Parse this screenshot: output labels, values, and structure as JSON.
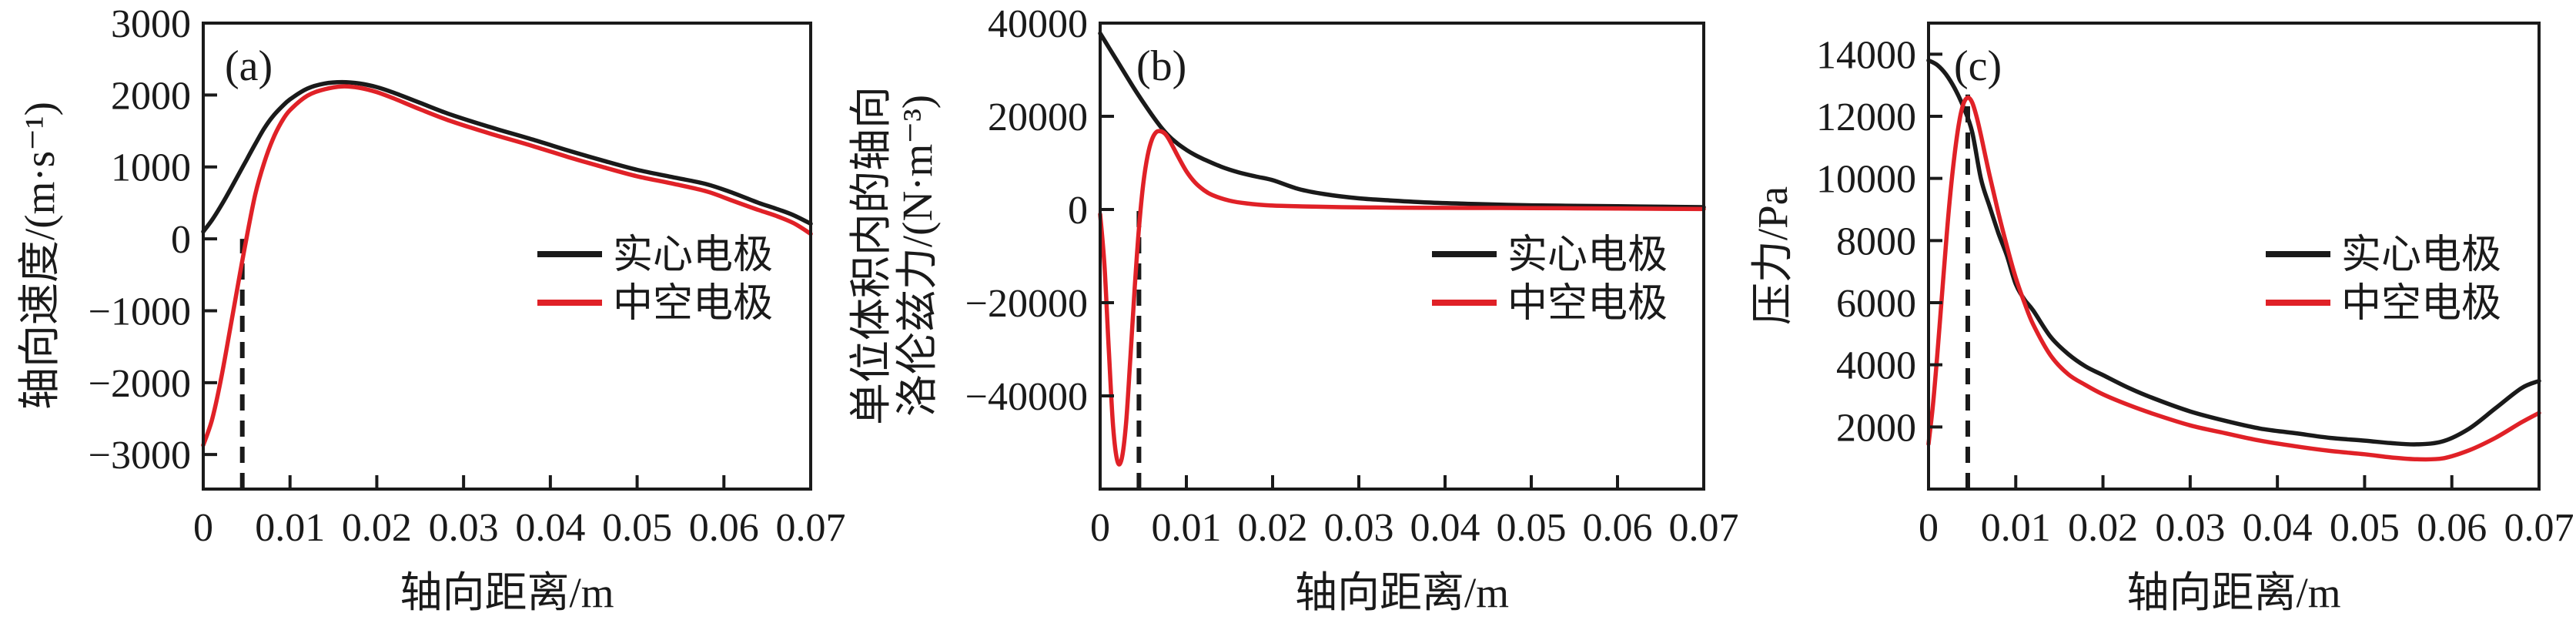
{
  "figure": {
    "background": "#ffffff",
    "axis_color": "#1a1a1a",
    "panels": [
      "a",
      "b",
      "c"
    ],
    "series_colors": {
      "solid_electrode": "#1a1a1a",
      "hollow_electrode": "#e02127"
    }
  },
  "chart_data": [
    {
      "type": "line",
      "panel_label": "(a)",
      "xlabel": "轴向距离/m",
      "ylabel_lines": [
        "轴向速度/(m·s⁻¹)"
      ],
      "xlim": [
        0,
        0.07
      ],
      "ylim": [
        -3480,
        3000
      ],
      "grid": false,
      "legend_position": "center-right",
      "xtick_values": [
        0,
        0.01,
        0.02,
        0.03,
        0.04,
        0.05,
        0.06,
        0.07
      ],
      "xtick_labels": [
        "0",
        "0.01",
        "0.02",
        "0.03",
        "0.04",
        "0.05",
        "0.06",
        "0.07"
      ],
      "ytick_values": [
        3000,
        2000,
        1000,
        0,
        -1000,
        -2000,
        -3000
      ],
      "ytick_labels": [
        "3000",
        "2000",
        "1000",
        "0",
        "−1000",
        "−2000",
        "−3000"
      ],
      "dashed_guide": {
        "x": 0.0045,
        "y_from": -3480,
        "y_to": 0
      },
      "series": [
        {
          "name": "实心电极",
          "color": "#1a1a1a",
          "x": [
            0,
            0.001,
            0.002,
            0.003,
            0.004,
            0.005,
            0.006,
            0.007,
            0.008,
            0.009,
            0.01,
            0.012,
            0.014,
            0.016,
            0.018,
            0.02,
            0.022,
            0.025,
            0.028,
            0.031,
            0.034,
            0.038,
            0.042,
            0.046,
            0.05,
            0.054,
            0.058,
            0.061,
            0.064,
            0.066,
            0.068,
            0.07
          ],
          "y": [
            100,
            260,
            450,
            660,
            880,
            1100,
            1320,
            1530,
            1700,
            1830,
            1940,
            2090,
            2160,
            2180,
            2160,
            2110,
            2030,
            1890,
            1750,
            1630,
            1520,
            1380,
            1230,
            1090,
            960,
            860,
            760,
            640,
            500,
            420,
            330,
            210
          ]
        },
        {
          "name": "中空电极",
          "color": "#e02127",
          "x": [
            0,
            0.001,
            0.002,
            0.003,
            0.004,
            0.005,
            0.006,
            0.007,
            0.008,
            0.009,
            0.01,
            0.012,
            0.014,
            0.016,
            0.018,
            0.02,
            0.022,
            0.025,
            0.028,
            0.031,
            0.034,
            0.038,
            0.042,
            0.046,
            0.05,
            0.054,
            0.058,
            0.061,
            0.064,
            0.066,
            0.068,
            0.07
          ],
          "y": [
            -2870,
            -2520,
            -1980,
            -1320,
            -640,
            20,
            620,
            1050,
            1380,
            1620,
            1790,
            1990,
            2080,
            2120,
            2100,
            2040,
            1950,
            1800,
            1660,
            1540,
            1430,
            1290,
            1140,
            1000,
            870,
            770,
            660,
            530,
            400,
            320,
            220,
            70
          ]
        }
      ]
    },
    {
      "type": "line",
      "panel_label": "(b)",
      "xlabel": "轴向距离/m",
      "ylabel_lines": [
        "单位体积内的轴向",
        "洛伦兹力/(N·m⁻³)"
      ],
      "xlim": [
        0,
        0.07
      ],
      "ylim": [
        -60000,
        40000
      ],
      "grid": false,
      "legend_position": "center-right",
      "xtick_values": [
        0,
        0.01,
        0.02,
        0.03,
        0.04,
        0.05,
        0.06,
        0.07
      ],
      "xtick_labels": [
        "0",
        "0.01",
        "0.02",
        "0.03",
        "0.04",
        "0.05",
        "0.06",
        "0.07"
      ],
      "ytick_values": [
        40000,
        20000,
        0,
        -20000,
        -40000
      ],
      "ytick_labels": [
        "40000",
        "20000",
        "0",
        "−20000",
        "−40000"
      ],
      "dashed_guide": {
        "x": 0.0045,
        "y_from": -60000,
        "y_to": 0
      },
      "series": [
        {
          "name": "实心电极",
          "color": "#1a1a1a",
          "x": [
            0,
            0.001,
            0.002,
            0.003,
            0.004,
            0.005,
            0.006,
            0.007,
            0.008,
            0.009,
            0.01,
            0.011,
            0.012,
            0.014,
            0.016,
            0.018,
            0.02,
            0.023,
            0.026,
            0.03,
            0.034,
            0.038,
            0.042,
            0.046,
            0.05,
            0.055,
            0.06,
            0.065,
            0.07
          ],
          "y": [
            37800,
            34800,
            31800,
            28800,
            25800,
            23000,
            20300,
            17800,
            15700,
            14100,
            12800,
            11700,
            10800,
            9200,
            8000,
            7100,
            6300,
            4400,
            3300,
            2400,
            1900,
            1500,
            1250,
            1050,
            900,
            800,
            700,
            600,
            500
          ]
        },
        {
          "name": "中空电极",
          "color": "#e02127",
          "x": [
            0,
            0.0005,
            0.001,
            0.0015,
            0.002,
            0.0025,
            0.003,
            0.0035,
            0.004,
            0.0045,
            0.005,
            0.0055,
            0.006,
            0.0065,
            0.007,
            0.0075,
            0.008,
            0.009,
            0.01,
            0.011,
            0.012,
            0.013,
            0.015,
            0.017,
            0.02,
            0.024,
            0.028,
            0.034,
            0.04,
            0.05,
            0.06,
            0.07
          ],
          "y": [
            -1000,
            -12000,
            -30000,
            -46500,
            -54000,
            -53500,
            -46000,
            -32000,
            -17000,
            -4000,
            5500,
            11500,
            15000,
            16600,
            16800,
            16300,
            15000,
            11500,
            8200,
            5800,
            4200,
            3100,
            1900,
            1300,
            850,
            650,
            500,
            400,
            350,
            300,
            200,
            100
          ]
        }
      ]
    },
    {
      "type": "line",
      "panel_label": "(c)",
      "xlabel": "轴向距离/m",
      "ylabel_lines": [
        "压力/Pa"
      ],
      "xlim": [
        0,
        0.07
      ],
      "ylim": [
        0,
        15000
      ],
      "grid": false,
      "legend_position": "center-right",
      "xtick_values": [
        0,
        0.01,
        0.02,
        0.03,
        0.04,
        0.05,
        0.06,
        0.07
      ],
      "xtick_labels": [
        "0",
        "0.01",
        "0.02",
        "0.03",
        "0.04",
        "0.05",
        "0.06",
        "0.07"
      ],
      "ytick_values": [
        14000,
        12000,
        10000,
        8000,
        6000,
        4000,
        2000
      ],
      "ytick_labels": [
        "14000",
        "12000",
        "10000",
        "8000",
        "6000",
        "4000",
        "2000"
      ],
      "dashed_guide": {
        "x": 0.0045,
        "y_from": 0,
        "y_to": 12700
      },
      "series": [
        {
          "name": "实心电极",
          "color": "#1a1a1a",
          "x": [
            0,
            0.001,
            0.002,
            0.003,
            0.004,
            0.005,
            0.006,
            0.007,
            0.008,
            0.009,
            0.01,
            0.011,
            0.012,
            0.014,
            0.016,
            0.018,
            0.02,
            0.023,
            0.026,
            0.03,
            0.034,
            0.038,
            0.042,
            0.046,
            0.05,
            0.053,
            0.056,
            0.059,
            0.062,
            0.065,
            0.068,
            0.07
          ],
          "y": [
            13800,
            13650,
            13350,
            12900,
            12300,
            11500,
            10000,
            9100,
            8250,
            7500,
            6600,
            6100,
            5750,
            4900,
            4350,
            3950,
            3670,
            3250,
            2900,
            2500,
            2200,
            1950,
            1800,
            1650,
            1560,
            1480,
            1440,
            1540,
            1950,
            2600,
            3250,
            3480
          ]
        },
        {
          "name": "中空电极",
          "color": "#e02127",
          "x": [
            0,
            0.0005,
            0.001,
            0.0015,
            0.002,
            0.0025,
            0.003,
            0.0035,
            0.004,
            0.0045,
            0.005,
            0.0055,
            0.006,
            0.007,
            0.008,
            0.009,
            0.01,
            0.011,
            0.012,
            0.014,
            0.016,
            0.018,
            0.02,
            0.023,
            0.026,
            0.03,
            0.034,
            0.038,
            0.042,
            0.046,
            0.05,
            0.053,
            0.056,
            0.059,
            0.062,
            0.065,
            0.068,
            0.07
          ],
          "y": [
            1450,
            2700,
            4300,
            6100,
            7900,
            9500,
            10800,
            11800,
            12400,
            12600,
            12450,
            12000,
            11400,
            10100,
            8900,
            7800,
            6800,
            6000,
            5300,
            4300,
            3700,
            3350,
            3050,
            2700,
            2400,
            2050,
            1800,
            1560,
            1380,
            1230,
            1120,
            1020,
            960,
            990,
            1250,
            1650,
            2150,
            2450
          ]
        }
      ]
    }
  ]
}
